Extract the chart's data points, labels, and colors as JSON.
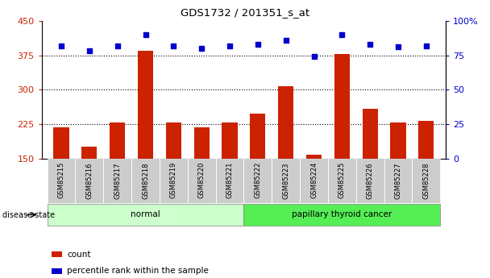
{
  "title": "GDS1732 / 201351_s_at",
  "samples": [
    "GSM85215",
    "GSM85216",
    "GSM85217",
    "GSM85218",
    "GSM85219",
    "GSM85220",
    "GSM85221",
    "GSM85222",
    "GSM85223",
    "GSM85224",
    "GSM85225",
    "GSM85226",
    "GSM85227",
    "GSM85228"
  ],
  "counts": [
    218,
    175,
    228,
    385,
    228,
    218,
    228,
    248,
    308,
    158,
    378,
    258,
    228,
    232
  ],
  "percentiles": [
    82,
    78,
    82,
    90,
    82,
    80,
    82,
    83,
    86,
    74,
    90,
    83,
    81,
    82
  ],
  "groups": [
    "normal",
    "normal",
    "normal",
    "normal",
    "normal",
    "normal",
    "normal",
    "papillary thyroid cancer",
    "papillary thyroid cancer",
    "papillary thyroid cancer",
    "papillary thyroid cancer",
    "papillary thyroid cancer",
    "papillary thyroid cancer",
    "papillary thyroid cancer"
  ],
  "ylim_left": [
    150,
    450
  ],
  "ylim_right": [
    0,
    100
  ],
  "yticks_left": [
    150,
    225,
    300,
    375,
    450
  ],
  "yticks_right": [
    0,
    25,
    50,
    75,
    100
  ],
  "bar_color": "#cc2200",
  "dot_color": "#0000cc",
  "normal_color": "#ccffcc",
  "cancer_color": "#55ee55",
  "group_label": "disease state",
  "legend_count": "count",
  "legend_pct": "percentile rank within the sample",
  "normal_label": "normal",
  "cancer_label": "papillary thyroid cancer",
  "bar_width": 0.55,
  "grid_yticks": [
    225,
    300,
    375
  ],
  "xtick_bg": "#cccccc"
}
